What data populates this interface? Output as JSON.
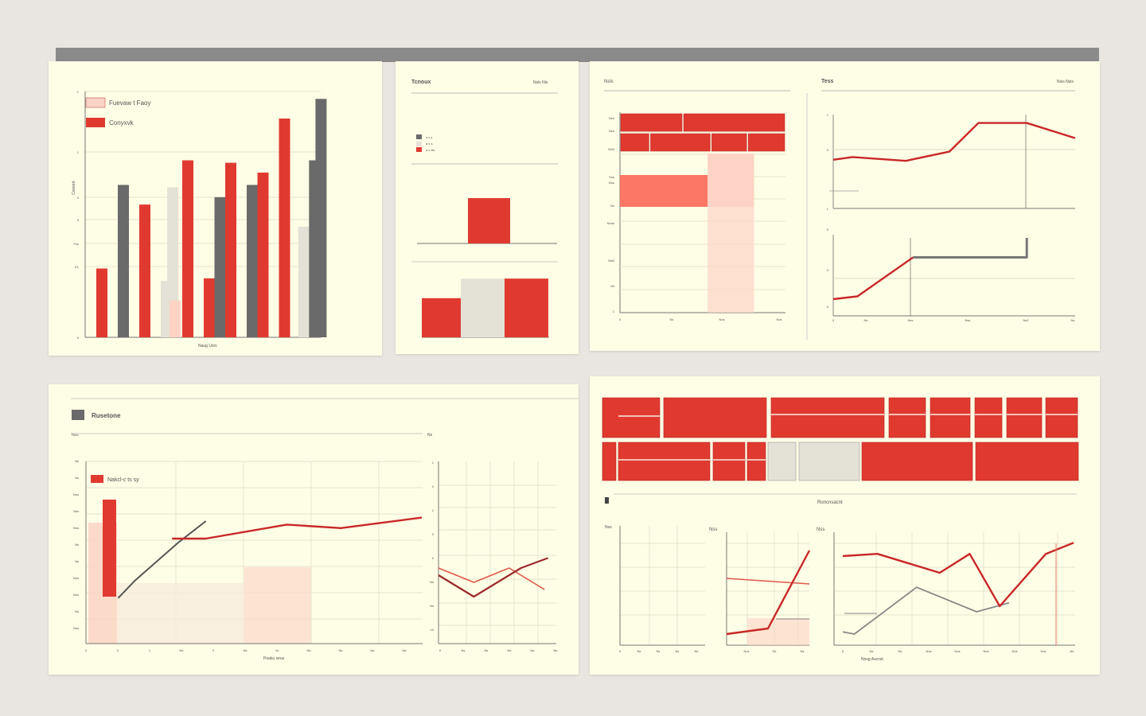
{
  "colors": {
    "red": "#e03a30",
    "dark_red": "#c82828",
    "gray": "#6a6a6a",
    "light": "#e4e2d6",
    "pink": "#fcd3c4",
    "salmon": "#fb7766",
    "grid": "#dedbc7",
    "panel": "#fefde6"
  },
  "chart_data": [
    {
      "type": "bar",
      "legend": [
        "Fuevaw t Faoy",
        "Conyxvk"
      ],
      "legend_position": "top-left",
      "xlabel": "Naug Usrs",
      "ylabel": "Cooxed",
      "ylim": [
        0,
        10
      ],
      "y_ticks": [
        "0",
        "1/1",
        "Fsn",
        "0",
        "0",
        "1",
        "1"
      ],
      "bars": [
        {
          "x": 0,
          "value": 2.8,
          "color": "red"
        },
        {
          "x": 1,
          "value": 6.2,
          "color": "gray"
        },
        {
          "x": 2,
          "value": 5.4,
          "color": "red"
        },
        {
          "x": 3,
          "value": 2.3,
          "color": "light"
        },
        {
          "x": 3.3,
          "value": 6.1,
          "color": "light"
        },
        {
          "x": 3.4,
          "value": 1.5,
          "color": "pink"
        },
        {
          "x": 4,
          "value": 7.2,
          "color": "red"
        },
        {
          "x": 5,
          "value": 2.4,
          "color": "red"
        },
        {
          "x": 5.5,
          "value": 5.7,
          "color": "gray"
        },
        {
          "x": 6,
          "value": 7.1,
          "color": "red"
        },
        {
          "x": 7,
          "value": 6.2,
          "color": "gray"
        },
        {
          "x": 7.5,
          "value": 6.7,
          "color": "red"
        },
        {
          "x": 8.5,
          "value": 8.9,
          "color": "red"
        },
        {
          "x": 9.4,
          "value": 4.5,
          "color": "light"
        },
        {
          "x": 9.9,
          "value": 7.2,
          "color": "gray"
        },
        {
          "x": 10.2,
          "value": 9.7,
          "color": "gray"
        }
      ]
    },
    {
      "type": "bar",
      "title": "Tcnoux",
      "top_right_label": "Nsls Nls",
      "legend": [
        "s s s",
        "a s s",
        "a s sls"
      ],
      "bars_upper": [
        {
          "x": 0,
          "value": 1.0,
          "color": "red"
        }
      ],
      "bars_lower": [
        {
          "x": 0,
          "value": 0.6,
          "color": "red"
        },
        {
          "x": 1,
          "value": 0.9,
          "color": "light"
        },
        {
          "x": 2,
          "value": 0.9,
          "color": "red"
        }
      ]
    },
    {
      "type": "bar",
      "top_left_label": "Nsls",
      "y_ticks": [
        "Nsn",
        "Nsn",
        "NsN",
        "Sus",
        "Bus",
        "Ns",
        "Neus",
        "NsN",
        "1N",
        "1"
      ],
      "x_ticks": [
        "0",
        "Ns",
        "Nos",
        "Nos"
      ],
      "stacked_rows": [
        {
          "row": 1,
          "segments": [
            {
              "from": 0,
              "to": 38,
              "color": "red"
            },
            {
              "from": 38,
              "to": 100,
              "color": "red"
            }
          ]
        },
        {
          "row": 2,
          "segments": [
            {
              "from": 0,
              "to": 18,
              "color": "red"
            },
            {
              "from": 18,
              "to": 55,
              "color": "red"
            },
            {
              "from": 55,
              "to": 77,
              "color": "red"
            },
            {
              "from": 77,
              "to": 100,
              "color": "red"
            }
          ]
        }
      ],
      "areas": [
        {
          "from": 0,
          "to": 53,
          "level": 0.68,
          "color": "salmon"
        },
        {
          "from": 53,
          "to": 81,
          "level": 0.7,
          "color": "pink"
        },
        {
          "from": 53,
          "to": 81,
          "level": 2.8,
          "color": "pink"
        }
      ]
    },
    {
      "type": "line",
      "title": "Tess",
      "top_right_label": "Nsis Nsis",
      "y_ticks_upper": [
        "1",
        "0",
        "1"
      ],
      "y_ticks_lower": [
        "0",
        "0",
        "0"
      ],
      "x_ticks": [
        "0",
        "Nn",
        "Nss",
        "Nss",
        "Ns2",
        "Ns"
      ],
      "upper_series": [
        [
          0,
          0.9
        ],
        [
          0.08,
          0.95
        ],
        [
          0.3,
          0.88
        ],
        [
          0.48,
          1.05
        ],
        [
          0.6,
          1.58
        ],
        [
          0.8,
          1.58
        ],
        [
          1.0,
          1.3
        ]
      ],
      "lower_series": [
        [
          0,
          0.3
        ],
        [
          0.1,
          0.35
        ],
        [
          0.33,
          1.05
        ]
      ],
      "lower_step": [
        [
          0.33,
          1.05
        ],
        [
          0.8,
          1.05
        ],
        [
          0.8,
          1.4
        ]
      ]
    },
    {
      "type": "line",
      "legend_header": "Rusetone",
      "legend": [
        "Nakcl-c ts sy"
      ],
      "y_label_top": "Nss",
      "y_label_right": "Ns",
      "xlabel": "Poaku seus",
      "y_ticks_left": [
        "Ns",
        "Ns",
        "Nus",
        "Nss",
        "Nss",
        "Ns",
        "Ns",
        "Nos",
        "Nos",
        "Ns",
        "Nss"
      ],
      "x_ticks_left": [
        "0",
        "0",
        "1",
        "Ns",
        "0",
        "Ns",
        "1s",
        "Ns",
        "Ns",
        "Ns",
        "Ns"
      ],
      "y_ticks_right": [
        "1",
        "0",
        "1",
        "0",
        "0",
        "Ns",
        "Ns",
        "10"
      ],
      "x_ticks_right": [
        "0",
        "Ns",
        "Ns",
        "Ns",
        "Ns",
        "Ns"
      ],
      "gray_series": [
        [
          0.1,
          1.3
        ],
        [
          0.15,
          1.8
        ],
        [
          0.28,
          2.9
        ],
        [
          0.36,
          3.5
        ]
      ],
      "red_series": [
        [
          0.26,
          3.0
        ],
        [
          0.36,
          3.0
        ],
        [
          0.6,
          3.4
        ],
        [
          0.76,
          3.3
        ],
        [
          1.0,
          3.6
        ]
      ],
      "right_red": [
        [
          0,
          0.55
        ],
        [
          0.3,
          0.45
        ],
        [
          0.6,
          0.55
        ],
        [
          0.9,
          0.4
        ]
      ],
      "right_dark": [
        [
          0,
          0.5
        ],
        [
          0.3,
          0.35
        ],
        [
          0.7,
          0.55
        ],
        [
          0.93,
          0.62
        ]
      ]
    },
    {
      "type": "line",
      "title": "Roncnsacnt",
      "y_labels": [
        "Nss",
        "Nss",
        "Nss"
      ],
      "x_ticks_1": [
        "0",
        "Ns",
        "Ns",
        "Ns",
        "Ns"
      ],
      "x_ticks_2": [
        "Nos",
        "Ns",
        "Ns"
      ],
      "x_ticks_3": [
        "0",
        "Ns",
        "Ns",
        "Nos",
        "Nos",
        "Nos",
        "Nos",
        "Nos",
        "Ns"
      ],
      "x_label_3": "Nsug Ascnst",
      "series_2_red": [
        [
          0,
          0.1
        ],
        [
          0.5,
          0.15
        ],
        [
          1.0,
          0.85
        ]
      ],
      "series_2_salmon": [
        [
          0,
          0.6
        ],
        [
          1.0,
          0.55
        ]
      ],
      "series_3_red": [
        [
          0,
          0.8
        ],
        [
          0.15,
          0.82
        ],
        [
          0.42,
          0.65
        ],
        [
          0.55,
          0.82
        ],
        [
          0.68,
          0.35
        ],
        [
          0.88,
          0.82
        ],
        [
          1.0,
          0.92
        ]
      ],
      "series_3_gray": [
        [
          0,
          0.12
        ],
        [
          0.05,
          0.1
        ],
        [
          0.32,
          0.52
        ],
        [
          0.58,
          0.3
        ],
        [
          0.72,
          0.38
        ]
      ]
    }
  ]
}
